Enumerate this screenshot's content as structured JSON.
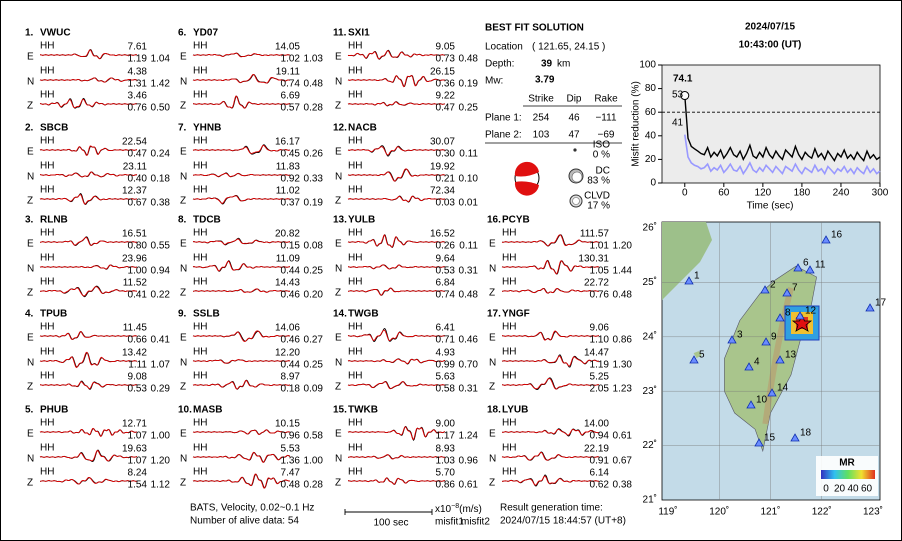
{
  "stations": [
    {
      "number": "1.",
      "name": "VWUC",
      "traces": [
        {
          "component": "E",
          "instrument": "HH",
          "amplitude": "7.61",
          "misfit1": "1.19",
          "misfit2": "1.04"
        },
        {
          "component": "N",
          "instrument": "HH",
          "amplitude": "4.38",
          "misfit1": "1.31",
          "misfit2": "1.42"
        },
        {
          "component": "Z",
          "instrument": "HH",
          "amplitude": "3.46",
          "misfit1": "0.76",
          "misfit2": "0.50"
        }
      ]
    },
    {
      "number": "2.",
      "name": "SBCB",
      "traces": [
        {
          "component": "E",
          "instrument": "HH",
          "amplitude": "22.54",
          "misfit1": "0.47",
          "misfit2": "0.24"
        },
        {
          "component": "N",
          "instrument": "HH",
          "amplitude": "23.11",
          "misfit1": "0.40",
          "misfit2": "0.18"
        },
        {
          "component": "Z",
          "instrument": "HH",
          "amplitude": "12.37",
          "misfit1": "0.67",
          "misfit2": "0.38"
        }
      ]
    },
    {
      "number": "3.",
      "name": "RLNB",
      "traces": [
        {
          "component": "E",
          "instrument": "HH",
          "amplitude": "16.51",
          "misfit1": "0.80",
          "misfit2": "0.55"
        },
        {
          "component": "N",
          "instrument": "HH",
          "amplitude": "23.96",
          "misfit1": "1.00",
          "misfit2": "0.94"
        },
        {
          "component": "Z",
          "instrument": "HH",
          "amplitude": "11.52",
          "misfit1": "0.41",
          "misfit2": "0.22"
        }
      ]
    },
    {
      "number": "4.",
      "name": "TPUB",
      "traces": [
        {
          "component": "E",
          "instrument": "HH",
          "amplitude": "11.45",
          "misfit1": "0.66",
          "misfit2": "0.41"
        },
        {
          "component": "N",
          "instrument": "HH",
          "amplitude": "13.42",
          "misfit1": "1.11",
          "misfit2": "1.07"
        },
        {
          "component": "Z",
          "instrument": "HH",
          "amplitude": "9.08",
          "misfit1": "0.53",
          "misfit2": "0.29"
        }
      ]
    },
    {
      "number": "5.",
      "name": "PHUB",
      "traces": [
        {
          "component": "E",
          "instrument": "HH",
          "amplitude": "12.71",
          "misfit1": "1.07",
          "misfit2": "1.00"
        },
        {
          "component": "N",
          "instrument": "HH",
          "amplitude": "19.63",
          "misfit1": "1.07",
          "misfit2": "1.20"
        },
        {
          "component": "Z",
          "instrument": "HH",
          "amplitude": "8.24",
          "misfit1": "1.54",
          "misfit2": "1.12"
        }
      ]
    },
    {
      "number": "6.",
      "name": "YD07",
      "traces": [
        {
          "component": "E",
          "instrument": "HH",
          "amplitude": "14.05",
          "misfit1": "1.02",
          "misfit2": "1.03"
        },
        {
          "component": "N",
          "instrument": "HH",
          "amplitude": "19.11",
          "misfit1": "0.74",
          "misfit2": "0.48"
        },
        {
          "component": "Z",
          "instrument": "HH",
          "amplitude": "6.69",
          "misfit1": "0.57",
          "misfit2": "0.28"
        }
      ]
    },
    {
      "number": "7.",
      "name": "YHNB",
      "traces": [
        {
          "component": "E",
          "instrument": "HH",
          "amplitude": "16.17",
          "misfit1": "0.45",
          "misfit2": "0.26"
        },
        {
          "component": "N",
          "instrument": "HH",
          "amplitude": "11.83",
          "misfit1": "0.92",
          "misfit2": "0.33"
        },
        {
          "component": "Z",
          "instrument": "HH",
          "amplitude": "11.02",
          "misfit1": "0.37",
          "misfit2": "0.19"
        }
      ]
    },
    {
      "number": "8.",
      "name": "TDCB",
      "traces": [
        {
          "component": "E",
          "instrument": "HH",
          "amplitude": "20.82",
          "misfit1": "0.15",
          "misfit2": "0.08"
        },
        {
          "component": "N",
          "instrument": "HH",
          "amplitude": "11.09",
          "misfit1": "0.44",
          "misfit2": "0.25"
        },
        {
          "component": "Z",
          "instrument": "HH",
          "amplitude": "14.43",
          "misfit1": "0.46",
          "misfit2": "0.20"
        }
      ]
    },
    {
      "number": "9.",
      "name": "SSLB",
      "traces": [
        {
          "component": "E",
          "instrument": "HH",
          "amplitude": "14.06",
          "misfit1": "0.46",
          "misfit2": "0.27"
        },
        {
          "component": "N",
          "instrument": "HH",
          "amplitude": "12.20",
          "misfit1": "0.44",
          "misfit2": "0.25"
        },
        {
          "component": "Z",
          "instrument": "HH",
          "amplitude": "8.97",
          "misfit1": "0.18",
          "misfit2": "0.09"
        }
      ]
    },
    {
      "number": "10.",
      "name": "MASB",
      "traces": [
        {
          "component": "E",
          "instrument": "HH",
          "amplitude": "10.15",
          "misfit1": "0.96",
          "misfit2": "0.58"
        },
        {
          "component": "N",
          "instrument": "HH",
          "amplitude": "5.53",
          "misfit1": "1.36",
          "misfit2": "1.00"
        },
        {
          "component": "Z",
          "instrument": "HH",
          "amplitude": "7.47",
          "misfit1": "0.48",
          "misfit2": "0.28"
        }
      ]
    },
    {
      "number": "11.",
      "name": "SXI1",
      "traces": [
        {
          "component": "E",
          "instrument": "HH",
          "amplitude": "9.05",
          "misfit1": "0.73",
          "misfit2": "0.48"
        },
        {
          "component": "N",
          "instrument": "HH",
          "amplitude": "26.15",
          "misfit1": "0.36",
          "misfit2": "0.19"
        },
        {
          "component": "Z",
          "instrument": "HH",
          "amplitude": "9.22",
          "misfit1": "0.47",
          "misfit2": "0.25"
        }
      ]
    },
    {
      "number": "12.",
      "name": "NACB",
      "traces": [
        {
          "component": "E",
          "instrument": "HH",
          "amplitude": "30.07",
          "misfit1": "0.30",
          "misfit2": "0.11"
        },
        {
          "component": "N",
          "instrument": "HH",
          "amplitude": "19.92",
          "misfit1": "0.21",
          "misfit2": "0.10"
        },
        {
          "component": "Z",
          "instrument": "HH",
          "amplitude": "72.34",
          "misfit1": "0.03",
          "misfit2": "0.01"
        }
      ]
    },
    {
      "number": "13.",
      "name": "YULB",
      "traces": [
        {
          "component": "E",
          "instrument": "HH",
          "amplitude": "16.52",
          "misfit1": "0.26",
          "misfit2": "0.11"
        },
        {
          "component": "N",
          "instrument": "HH",
          "amplitude": "9.64",
          "misfit1": "0.53",
          "misfit2": "0.31"
        },
        {
          "component": "Z",
          "instrument": "HH",
          "amplitude": "6.84",
          "misfit1": "0.74",
          "misfit2": "0.48"
        }
      ]
    },
    {
      "number": "14.",
      "name": "TWGB",
      "traces": [
        {
          "component": "E",
          "instrument": "HH",
          "amplitude": "6.41",
          "misfit1": "0.71",
          "misfit2": "0.46"
        },
        {
          "component": "N",
          "instrument": "HH",
          "amplitude": "4.93",
          "misfit1": "0.99",
          "misfit2": "0.70"
        },
        {
          "component": "Z",
          "instrument": "HH",
          "amplitude": "5.63",
          "misfit1": "0.58",
          "misfit2": "0.31"
        }
      ]
    },
    {
      "number": "15.",
      "name": "TWKB",
      "traces": [
        {
          "component": "E",
          "instrument": "HH",
          "amplitude": "9.00",
          "misfit1": "1.17",
          "misfit2": "1.24"
        },
        {
          "component": "N",
          "instrument": "HH",
          "amplitude": "8.93",
          "misfit1": "1.03",
          "misfit2": "0.96"
        },
        {
          "component": "Z",
          "instrument": "HH",
          "amplitude": "5.70",
          "misfit1": "0.86",
          "misfit2": "0.61"
        }
      ]
    },
    {
      "number": "16.",
      "name": "PCYB",
      "traces": [
        {
          "component": "E",
          "instrument": "HH",
          "amplitude": "111.57",
          "misfit1": "1.01",
          "misfit2": "1.20"
        },
        {
          "component": "N",
          "instrument": "HH",
          "amplitude": "130.31",
          "misfit1": "1.05",
          "misfit2": "1.44"
        },
        {
          "component": "Z",
          "instrument": "HH",
          "amplitude": "22.72",
          "misfit1": "0.76",
          "misfit2": "0.48"
        }
      ]
    },
    {
      "number": "17.",
      "name": "YNGF",
      "traces": [
        {
          "component": "E",
          "instrument": "HH",
          "amplitude": "9.06",
          "misfit1": "1.10",
          "misfit2": "0.86"
        },
        {
          "component": "N",
          "instrument": "HH",
          "amplitude": "14.47",
          "misfit1": "1.19",
          "misfit2": "1.30"
        },
        {
          "component": "Z",
          "instrument": "HH",
          "amplitude": "5.25",
          "misfit1": "2.05",
          "misfit2": "1.23"
        }
      ]
    },
    {
      "number": "18.",
      "name": "LYUB",
      "traces": [
        {
          "component": "E",
          "instrument": "HH",
          "amplitude": "14.00",
          "misfit1": "0.94",
          "misfit2": "0.61"
        },
        {
          "component": "N",
          "instrument": "HH",
          "amplitude": "22.19",
          "misfit1": "0.91",
          "misfit2": "0.67"
        },
        {
          "component": "Z",
          "instrument": "HH",
          "amplitude": "6.14",
          "misfit1": "0.62",
          "misfit2": "0.38"
        }
      ]
    }
  ],
  "solution": {
    "title": "BEST FIT SOLUTION",
    "location_label": "Location",
    "location": "( 121.65, 24.15 )",
    "depth_label": "Depth:",
    "depth": "39",
    "depth_unit": "km",
    "mw_label": "Mw:",
    "mw": "3.79",
    "columns": [
      "Strike",
      "Dip",
      "Rake"
    ],
    "planes": [
      {
        "label": "Plane 1:",
        "values": [
          "254",
          "46",
          "−111"
        ]
      },
      {
        "label": "Plane 2:",
        "values": [
          "103",
          "47",
          "−69"
        ]
      }
    ],
    "components": [
      {
        "name": "ISO",
        "percent": "0 %"
      },
      {
        "name": "DC",
        "percent": "83 %"
      },
      {
        "name": "CLVD",
        "percent": "17 %"
      }
    ]
  },
  "origin": {
    "date": "2024/07/15",
    "time": "10:43:00  (UT)"
  },
  "misfit_chart": {
    "type": "line",
    "ylabel": "Misfit reduction (%)",
    "xlabel": "Time (sec)",
    "x": [
      0,
      5,
      10,
      15,
      20,
      25,
      30,
      35,
      40,
      45,
      50,
      55,
      60,
      65,
      70,
      75,
      80,
      85,
      90,
      95,
      100,
      105,
      110,
      115,
      120,
      125,
      130,
      135,
      140,
      145,
      150,
      155,
      160,
      165,
      170,
      175,
      180,
      185,
      190,
      195,
      200,
      205,
      210,
      215,
      220,
      225,
      230,
      235,
      240,
      245,
      250,
      255,
      260,
      265,
      270,
      275,
      280,
      285,
      290,
      295,
      300
    ],
    "series": [
      {
        "color": "#000000",
        "values": [
          74.1,
          38,
          31,
          29,
          27,
          25,
          24,
          30,
          22,
          26,
          23,
          28,
          21,
          25,
          30,
          24,
          22,
          27,
          20,
          25,
          32,
          23,
          21,
          26,
          22,
          30,
          24,
          21,
          27,
          23,
          20,
          28,
          25,
          22,
          31,
          24,
          20,
          26,
          23,
          21,
          29,
          22,
          25,
          20,
          27,
          23,
          19,
          25,
          22,
          28,
          21,
          24,
          20,
          26,
          22,
          19,
          27,
          21,
          24,
          20,
          22
        ]
      },
      {
        "color": "#9999ff",
        "values": [
          41,
          22,
          17,
          15,
          14,
          12,
          13,
          16,
          10,
          13,
          11,
          15,
          9,
          12,
          16,
          11,
          10,
          14,
          8,
          12,
          17,
          11,
          9,
          13,
          10,
          15,
          12,
          9,
          14,
          11,
          8,
          14,
          12,
          10,
          16,
          11,
          8,
          13,
          11,
          9,
          15,
          10,
          12,
          8,
          14,
          11,
          8,
          12,
          10,
          14,
          9,
          12,
          8,
          13,
          10,
          8,
          14,
          9,
          12,
          8,
          10
        ]
      }
    ],
    "annotations": [
      {
        "text": "74.1",
        "color": "#ee1111"
      },
      {
        "text": "53",
        "color": "#999999"
      },
      {
        "text": "41",
        "color": "#8888ff"
      }
    ],
    "reference_line": 60,
    "xlim": [
      -35,
      300
    ],
    "ylim": [
      0,
      100
    ],
    "xticks": [
      0,
      60,
      120,
      180,
      240,
      300
    ],
    "yticks": [
      0,
      20,
      40,
      60,
      80,
      100
    ]
  },
  "map": {
    "lon_ticks": [
      "119˚",
      "120˚",
      "121˚",
      "122˚",
      "123˚"
    ],
    "lat_ticks": [
      "26˚",
      "25˚",
      "24˚",
      "23˚",
      "22˚",
      "21˚"
    ],
    "stations": [
      "1",
      "2",
      "3",
      "4",
      "5",
      "6",
      "7",
      "8",
      "9",
      "10",
      "11",
      "12",
      "13",
      "14",
      "15",
      "16",
      "17",
      "18"
    ],
    "colorbar": {
      "title": "MR",
      "ticks": [
        0,
        20,
        40,
        60
      ]
    }
  },
  "footer": {
    "filter": "BATS, Velocity, 0.02~0.1 Hz",
    "alive": "Number of alive data: 54",
    "scale": "100 sec",
    "unit": [
      "x10",
      "−8",
      "(m/s)"
    ],
    "misfit1": "misfit1",
    "misfit2": "misfit2",
    "generation_label": "Result generation time:",
    "generation_time": "2024/07/15 18:44:57 (UT+8)"
  }
}
